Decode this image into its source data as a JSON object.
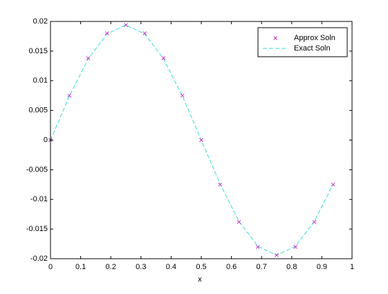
{
  "colors": {
    "approx_marker": "#cc33cc",
    "exact_line": "#33dddd",
    "axes": "#000000",
    "background": "#ffffff"
  },
  "chart_data": {
    "type": "line",
    "xlabel": "x",
    "ylabel": "",
    "title": "",
    "xlim": [
      0,
      1
    ],
    "ylim": [
      -0.02,
      0.02
    ],
    "xticks": [
      0,
      0.1,
      0.2,
      0.3,
      0.4,
      0.5,
      0.6,
      0.7,
      0.8,
      0.9,
      1
    ],
    "xtick_labels": [
      "0",
      "0.1",
      "0.2",
      "0.3",
      "0.4",
      "0.5",
      "0.6",
      "0.7",
      "0.8",
      "0.9",
      "1"
    ],
    "yticks": [
      -0.02,
      -0.015,
      -0.01,
      -0.005,
      0,
      0.005,
      0.01,
      0.015,
      0.02
    ],
    "ytick_labels": [
      "-0.02",
      "-0.015",
      "-0.01",
      "-0.005",
      "0",
      "0.005",
      "0.01",
      "0.015",
      "0.02"
    ],
    "grid": false,
    "legend_position": "top-right",
    "x": [
      0,
      0.0625,
      0.125,
      0.1875,
      0.25,
      0.3125,
      0.375,
      0.4375,
      0.5,
      0.5625,
      0.625,
      0.6875,
      0.75,
      0.8125,
      0.875,
      0.9375
    ],
    "series": [
      {
        "name": "Approx Soln",
        "style": "markers-x",
        "values": [
          0,
          0.0075,
          0.0138,
          0.018,
          0.0194,
          0.018,
          0.0138,
          0.0075,
          0,
          -0.0075,
          -0.0138,
          -0.018,
          -0.0194,
          -0.018,
          -0.0138,
          -0.0075
        ]
      },
      {
        "name": "Exact Soln",
        "style": "dashed-line",
        "values": [
          0,
          0.0074,
          0.0137,
          0.0179,
          0.0194,
          0.0179,
          0.0137,
          0.0074,
          0,
          -0.0074,
          -0.0137,
          -0.0179,
          -0.0194,
          -0.0179,
          -0.0137,
          -0.0074
        ]
      }
    ]
  }
}
